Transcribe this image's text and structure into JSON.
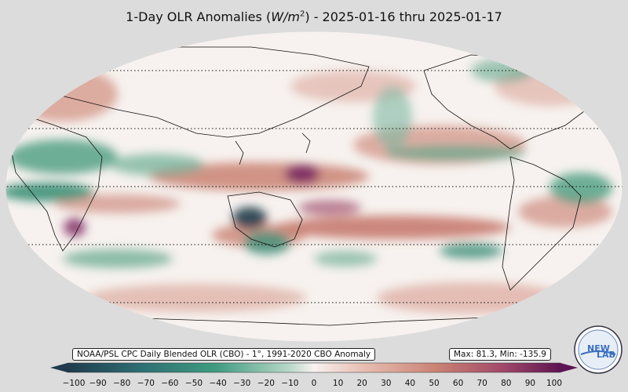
{
  "title": {
    "prefix": "1-Day OLR Anomalies (",
    "var": "W/m",
    "sup": "2",
    "suffix": ") - 2025-01-16 thru 2025-01-17"
  },
  "source_label": "NOAA/PSL CPC Daily Blended OLR (CBO) - 1°, 1991-2020 CBO Anomaly",
  "stats_label": "Max: 81.3,  Min: -135.9",
  "logo": {
    "text_left": "NEW",
    "text_right": "LAB"
  },
  "colorbar": {
    "ticks": [
      "−100",
      "−90",
      "−80",
      "−70",
      "−60",
      "−50",
      "−40",
      "−30",
      "−20",
      "−10",
      "0",
      "10",
      "20",
      "30",
      "40",
      "50",
      "60",
      "70",
      "80",
      "90",
      "100"
    ],
    "low_color": "#1f3b4d",
    "mid_color": "#f7f2ef",
    "high_color": "#5e1452"
  },
  "map": {
    "projection": "Robinson",
    "central_longitude": "180",
    "ocean_background": "#f7f2ef",
    "positive_color": "#c98273",
    "negative_color": "#2e8a6e",
    "strong_positive_color": "#7a2763",
    "strong_negative_color": "#1d3a48"
  }
}
